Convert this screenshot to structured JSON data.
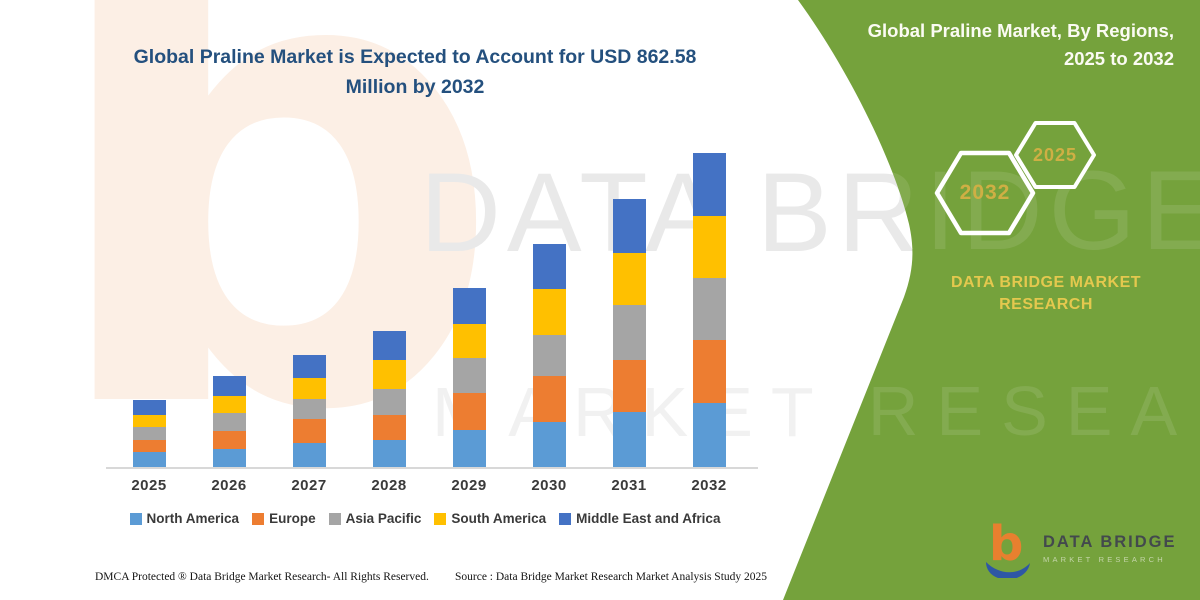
{
  "main_title": "Global Praline Market is Expected to Account for USD 862.58 Million by 2032",
  "chart_data": {
    "type": "bar",
    "stacked": true,
    "title": "Global Praline Market is Expected to Account for USD 862.58 Million by 2032",
    "unit": "USD Million",
    "categories": [
      "2025",
      "2026",
      "2027",
      "2028",
      "2029",
      "2030",
      "2031",
      "2032"
    ],
    "series": [
      {
        "name": "North America",
        "color": "#5B9BD5",
        "values": [
          40,
          50,
          66,
          75,
          103,
          124,
          151,
          176
        ]
      },
      {
        "name": "Europe",
        "color": "#ED7D31",
        "values": [
          35,
          50,
          67,
          69,
          99,
          126,
          142,
          174
        ]
      },
      {
        "name": "Asia Pacific",
        "color": "#A5A5A5",
        "values": [
          35,
          48,
          53,
          71,
          98,
          114,
          151,
          169
        ]
      },
      {
        "name": "South America",
        "color": "#FFC000",
        "values": [
          34,
          46,
          60,
          80,
          94,
          126,
          145,
          171
        ]
      },
      {
        "name": "Middle East and Africa",
        "color": "#4472C4",
        "values": [
          41,
          55,
          63,
          78,
          99,
          124,
          146,
          172.58
        ]
      }
    ],
    "totals": [
      185,
      249,
      309,
      373,
      493,
      614,
      735,
      862.58
    ],
    "xlabel": "",
    "ylabel": "",
    "ylim": [
      0,
      880
    ],
    "gridlines": false,
    "legend_position": "bottom"
  },
  "panel": {
    "title": "Global Praline Market, By Regions, 2025 to 2032",
    "hexagons": [
      {
        "label": "2032"
      },
      {
        "label": "2025"
      }
    ],
    "org_name": "DATA BRIDGE MARKET RESEARCH",
    "colors": {
      "background": "#75A23C",
      "gold": "#D9B945",
      "hex_outline": "#FFFFFF"
    }
  },
  "watermarks": {
    "logo_glyph": "b",
    "line1": "DATA BRIDGE",
    "line2": "MARKET RESEARCH"
  },
  "footer": {
    "left": "DMCA Protected ® Data Bridge Market Research- All Rights Reserved.",
    "right": "Source : Data Bridge Market Research Market Analysis Study 2025"
  },
  "logo": {
    "text": "DATA BRIDGE",
    "subtext": "MARKET RESEARCH"
  }
}
